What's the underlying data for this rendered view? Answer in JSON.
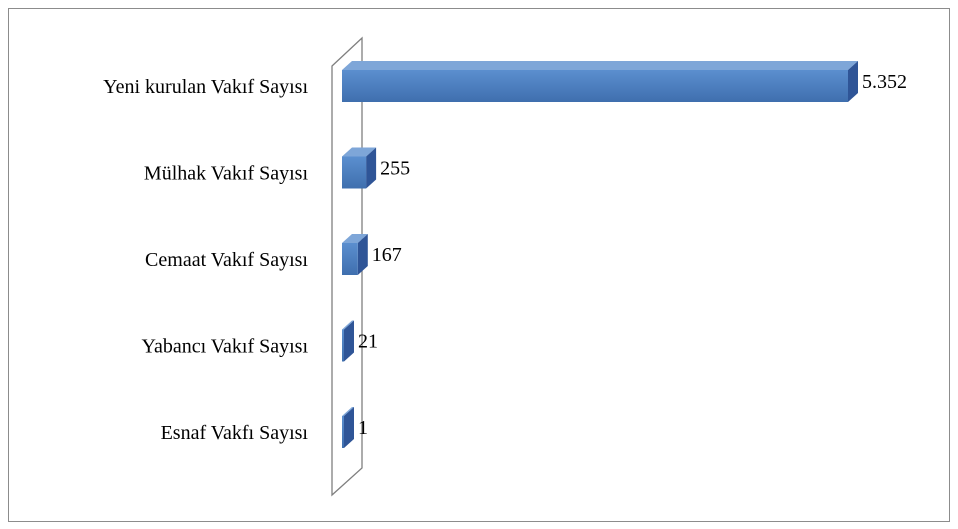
{
  "chart_data": {
    "type": "bar",
    "orientation": "horizontal",
    "style": "3d",
    "categories": [
      "Yeni kurulan Vakıf Sayısı",
      "Mülhak Vakıf Sayısı",
      "Cemaat Vakıf Sayısı",
      "Yabancı Vakıf Sayısı",
      "Esnaf Vakfı Sayısı"
    ],
    "values": [
      5352,
      255,
      167,
      21,
      1
    ],
    "value_labels": [
      "5.352",
      "255",
      "167",
      "21",
      "1"
    ],
    "title": "",
    "xlabel": "",
    "ylabel": "",
    "xlim": [
      0,
      5352
    ],
    "grid": false,
    "legend": "none",
    "colors": {
      "bar_front": "#4f81bd",
      "bar_top": "#7ea6d8",
      "bar_side": "#2f5597",
      "wall_stroke": "#7f7f7f"
    }
  }
}
